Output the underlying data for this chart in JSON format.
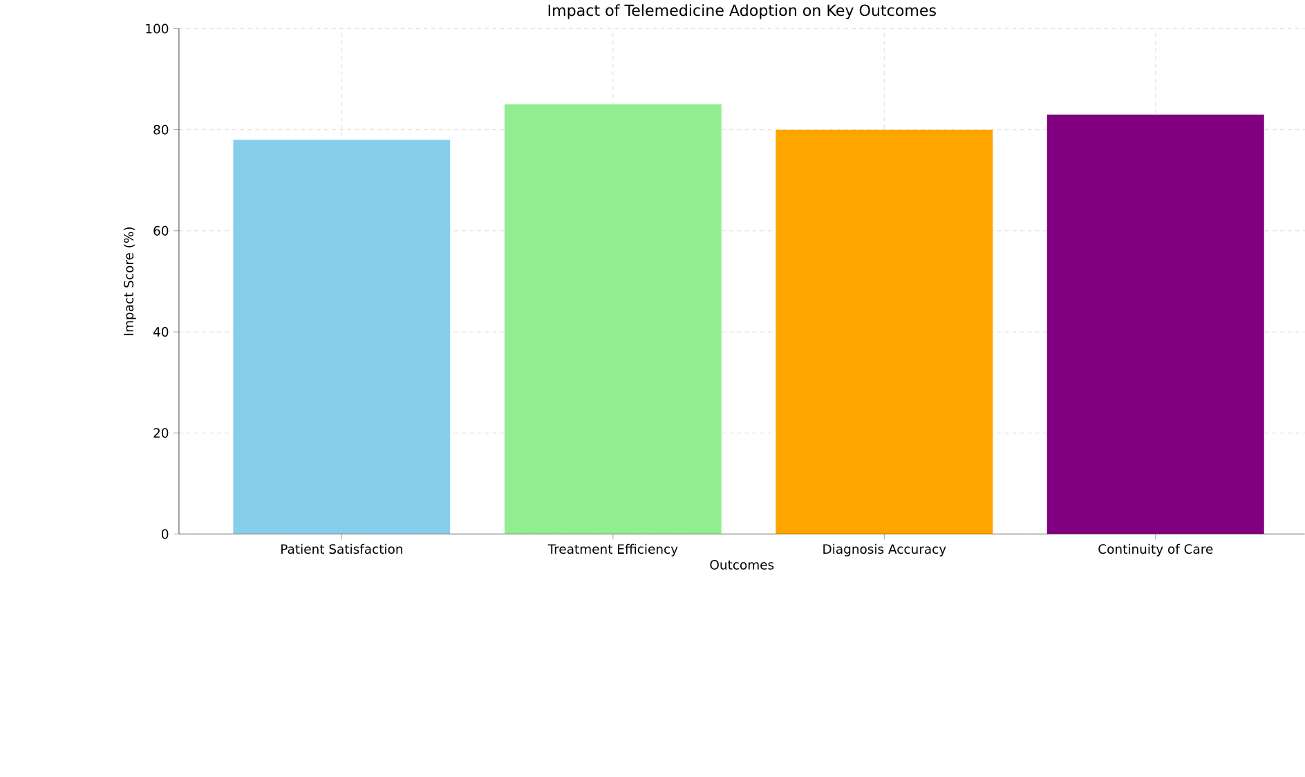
{
  "chart_data": {
    "type": "bar",
    "title": "Impact of Telemedicine Adoption on Key Outcomes",
    "xlabel": "Outcomes",
    "ylabel": "Impact Score (%)",
    "categories": [
      "Patient Satisfaction",
      "Treatment Efficiency",
      "Diagnosis Accuracy",
      "Continuity of Care"
    ],
    "values": [
      78,
      85,
      80,
      83
    ],
    "colors": [
      "#87ceeb",
      "#90ee90",
      "#ffa500",
      "#800080"
    ],
    "ylim": [
      0,
      100
    ],
    "yticks": [
      0,
      20,
      40,
      60,
      80,
      100
    ],
    "grid": true
  }
}
